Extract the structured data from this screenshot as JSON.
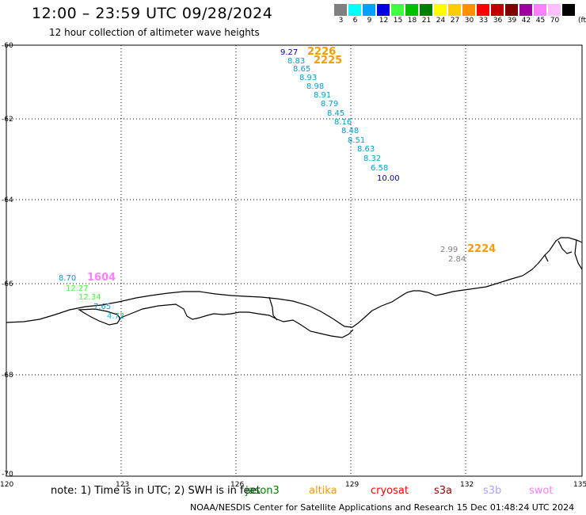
{
  "header": {
    "title": "12:00 – 23:59 UTC 09/28/2024",
    "subtitle": "12 hour collection of altimeter wave heights"
  },
  "color_scale": {
    "units": "(ft)",
    "bins": [
      {
        "label": "3",
        "color": "#808080"
      },
      {
        "label": "6",
        "color": "#00ffff"
      },
      {
        "label": "9",
        "color": "#00a0ff"
      },
      {
        "label": "12",
        "color": "#0000e0"
      },
      {
        "label": "15",
        "color": "#40ff40"
      },
      {
        "label": "18",
        "color": "#00c000"
      },
      {
        "label": "21",
        "color": "#008000"
      },
      {
        "label": "24",
        "color": "#ffff00"
      },
      {
        "label": "27",
        "color": "#ffcc00"
      },
      {
        "label": "30",
        "color": "#ff9000"
      },
      {
        "label": "33",
        "color": "#ff0000"
      },
      {
        "label": "36",
        "color": "#c00000"
      },
      {
        "label": "39",
        "color": "#800000"
      },
      {
        "label": "42",
        "color": "#a000a0"
      },
      {
        "label": "45",
        "color": "#ff80ff"
      },
      {
        "label": "70",
        "color": "#ffc0ff"
      },
      {
        "label": "",
        "color": "#000000"
      }
    ]
  },
  "axes": {
    "lat_labels": [
      "-60",
      "-62",
      "-64",
      "-66",
      "-68",
      "-70"
    ],
    "lon_labels": [
      "120",
      "123",
      "126",
      "129",
      "132",
      "135"
    ]
  },
  "tracks": [
    {
      "pass": "2226",
      "pass_color": "#ff9900",
      "values": [
        {
          "text": "9.27",
          "color": "#0000b0"
        }
      ]
    },
    {
      "pass": "2225",
      "pass_color": "#ff9900",
      "values": [
        {
          "text": "8.83",
          "color": "#00a0d0"
        },
        {
          "text": "8.65",
          "color": "#00a0d0"
        },
        {
          "text": "8.93",
          "color": "#00a0d0"
        },
        {
          "text": "8.98",
          "color": "#00a0d0"
        },
        {
          "text": "8.91",
          "color": "#00a0d0"
        },
        {
          "text": "8.79",
          "color": "#00a0d0"
        },
        {
          "text": "8.45",
          "color": "#00a0d0"
        },
        {
          "text": "8.16",
          "color": "#00a0d0"
        },
        {
          "text": "8.48",
          "color": "#00a0d0"
        },
        {
          "text": "8.51",
          "color": "#00a0d0"
        },
        {
          "text": "8.63",
          "color": "#00a0d0"
        },
        {
          "text": "8.32",
          "color": "#00a0d0"
        },
        {
          "text": "6.58",
          "color": "#00a0d0"
        },
        {
          "text": "10.00",
          "color": "#0000b0"
        }
      ]
    },
    {
      "pass": "2224",
      "pass_color": "#ff9900",
      "values": [
        {
          "text": "2.99",
          "color": "#808080"
        },
        {
          "text": "2.84",
          "color": "#808080"
        }
      ]
    },
    {
      "pass": "1604",
      "pass_color": "#ff80ff",
      "values": [
        {
          "text": "8.70",
          "color": "#00a0d0"
        },
        {
          "text": "12.27",
          "color": "#40ff40"
        },
        {
          "text": "12.34",
          "color": "#40ff40"
        },
        {
          "text": "7.65",
          "color": "#00a0d0"
        },
        {
          "text": "4.72",
          "color": "#00c0ff"
        }
      ]
    }
  ],
  "note": "note: 1) Time is in UTC; 2) SWH is in feet",
  "satellites": [
    {
      "name": "jason3",
      "color": "#008000"
    },
    {
      "name": "altika",
      "color": "#ff9900"
    },
    {
      "name": "cryosat",
      "color": "#ff0000"
    },
    {
      "name": "s3a",
      "color": "#990000"
    },
    {
      "name": "s3b",
      "color": "#b0a0ff"
    },
    {
      "name": "swot",
      "color": "#ff80ff"
    }
  ],
  "footer": "NOAA/NESDIS Center for Satellite Applications and Research   15 Dec 01:48:24 UTC 2024"
}
